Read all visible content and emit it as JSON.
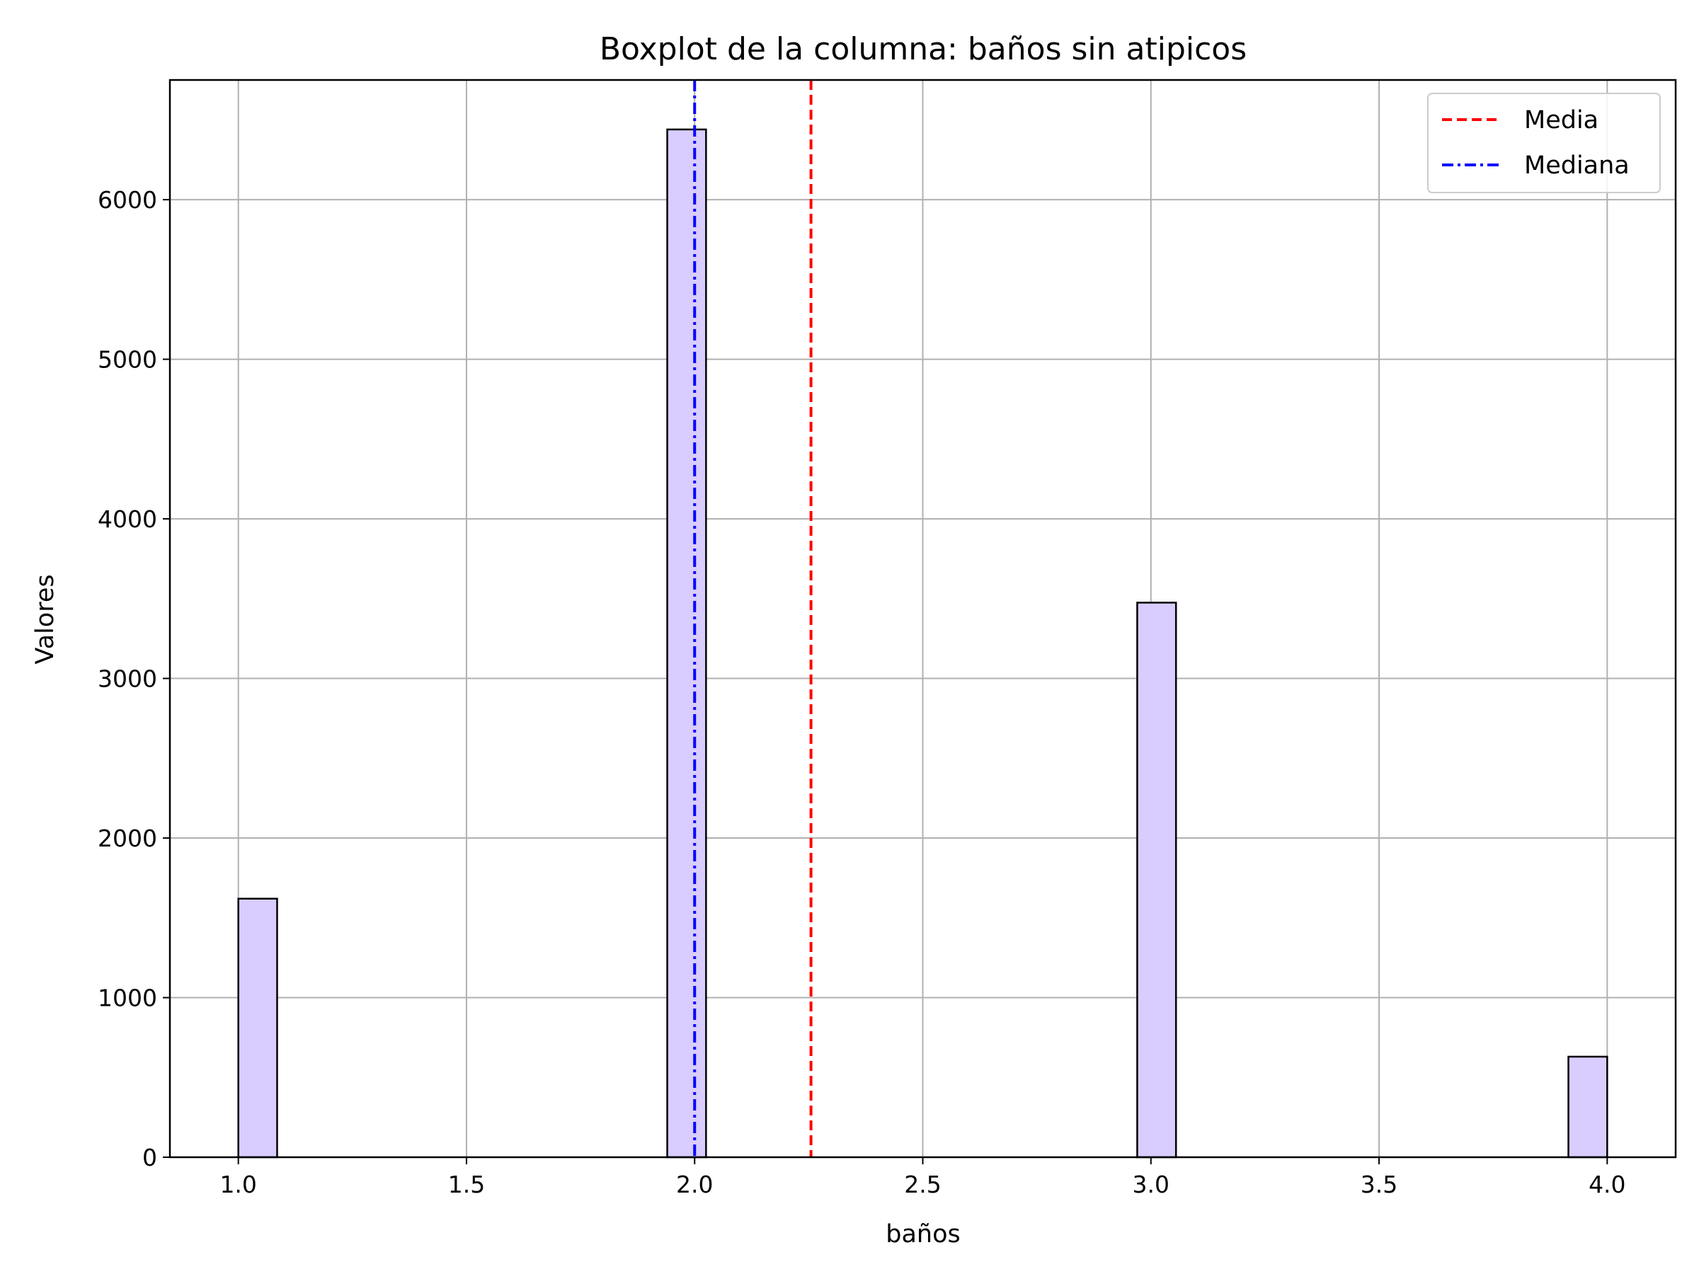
{
  "chart_data": {
    "type": "bar",
    "title": "Boxplot de la columna: baños sin atipicos",
    "xlabel": "baños",
    "ylabel": "Valores",
    "xlim": [
      0.85,
      4.15
    ],
    "ylim": [
      0,
      6750
    ],
    "xticks": [
      1.0,
      1.5,
      2.0,
      2.5,
      3.0,
      3.5,
      4.0
    ],
    "xtick_labels": [
      "1.0",
      "1.5",
      "2.0",
      "2.5",
      "3.0",
      "3.5",
      "4.0"
    ],
    "yticks": [
      0,
      1000,
      2000,
      3000,
      4000,
      5000,
      6000
    ],
    "ytick_labels": [
      "0",
      "1000",
      "2000",
      "3000",
      "4000",
      "5000",
      "6000"
    ],
    "grid": true,
    "bar_color": "#d9ccff",
    "bar_edge_color": "#000000",
    "bars": [
      {
        "x_start": 1.0,
        "x_end": 1.085,
        "value": 1620
      },
      {
        "x_start": 1.94,
        "x_end": 2.025,
        "value": 6440
      },
      {
        "x_start": 2.97,
        "x_end": 3.055,
        "value": 3475
      },
      {
        "x_start": 3.915,
        "x_end": 4.0,
        "value": 630
      }
    ],
    "reference_lines": [
      {
        "name": "Media",
        "x": 2.255,
        "color": "#ff0000",
        "style": "dashed"
      },
      {
        "name": "Mediana",
        "x": 2.0,
        "color": "#0000ff",
        "style": "dashdot"
      }
    ],
    "legend": {
      "placement": "top-right",
      "entries": [
        {
          "label": "Media",
          "color": "#ff0000",
          "style": "dashed"
        },
        {
          "label": "Mediana",
          "color": "#0000ff",
          "style": "dashdot"
        }
      ]
    }
  }
}
